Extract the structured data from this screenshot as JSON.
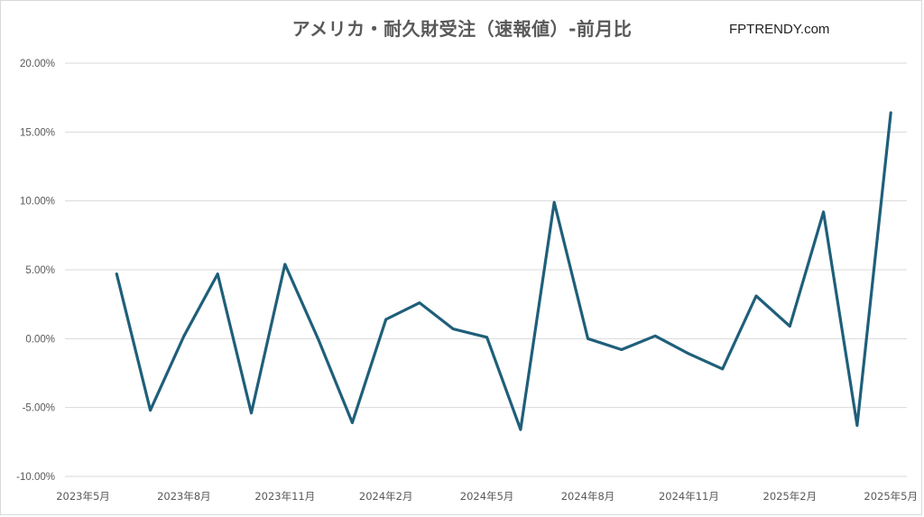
{
  "brand": "FPTRENDY.com",
  "chart_data": {
    "type": "line",
    "title": "アメリカ・耐久財受注（速報値）-前月比",
    "xlabel": "",
    "ylabel": "",
    "ylim": [
      -10,
      20
    ],
    "yticks": [
      20,
      15,
      10,
      5,
      0,
      -5,
      -10
    ],
    "ytick_labels": [
      "20.00%",
      "15.00%",
      "10.00%",
      "5.00%",
      "0.00%",
      "-5.00%",
      "-10.00%"
    ],
    "xtick_labels": [
      "2023年5月",
      "2023年8月",
      "2023年11月",
      "2024年2月",
      "2024年5月",
      "2024年8月",
      "2024年11月",
      "2025年2月",
      "2025年5月"
    ],
    "grid": true,
    "line_color": "#1f5f7a",
    "series": [
      {
        "values": [
          4.7,
          -5.2,
          0.2,
          4.7,
          -5.4,
          5.4,
          -0.1,
          -6.1,
          1.4,
          2.6,
          0.7,
          0.1,
          -6.6,
          9.9,
          0.0,
          -0.8,
          0.2,
          -1.1,
          -2.2,
          3.1,
          0.9,
          9.2,
          -6.3,
          16.4
        ]
      }
    ]
  }
}
